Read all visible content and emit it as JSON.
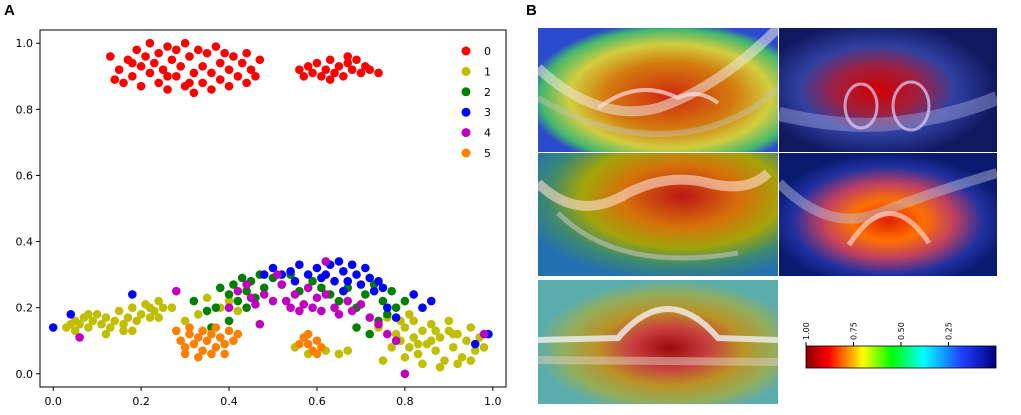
{
  "panels": {
    "a": "A",
    "b": "B"
  },
  "chart_data": {
    "type": "scatter",
    "title": "",
    "xlabel": "",
    "ylabel": "",
    "xlim": [
      -0.03,
      1.03
    ],
    "ylim": [
      -0.04,
      1.04
    ],
    "xticks": [
      "0.0",
      "0.2",
      "0.4",
      "0.6",
      "0.8",
      "1.0"
    ],
    "yticks": [
      "0.0",
      "0.2",
      "0.4",
      "0.6",
      "0.8",
      "1.0"
    ],
    "legend": "top-right",
    "series": [
      {
        "name": "0",
        "color": "#ff0000",
        "points": [
          [
            0.13,
            0.96
          ],
          [
            0.15,
            0.92
          ],
          [
            0.16,
            0.88
          ],
          [
            0.17,
            0.95
          ],
          [
            0.18,
            0.9
          ],
          [
            0.19,
            0.98
          ],
          [
            0.2,
            0.93
          ],
          [
            0.2,
            0.87
          ],
          [
            0.21,
            0.96
          ],
          [
            0.22,
            0.91
          ],
          [
            0.22,
            1.0
          ],
          [
            0.23,
            0.94
          ],
          [
            0.24,
            0.88
          ],
          [
            0.24,
            0.97
          ],
          [
            0.25,
            0.92
          ],
          [
            0.26,
            0.99
          ],
          [
            0.26,
            0.86
          ],
          [
            0.27,
            0.95
          ],
          [
            0.28,
            0.9
          ],
          [
            0.28,
            0.98
          ],
          [
            0.29,
            0.93
          ],
          [
            0.3,
            0.87
          ],
          [
            0.3,
            1.0
          ],
          [
            0.31,
            0.96
          ],
          [
            0.32,
            0.91
          ],
          [
            0.32,
            0.85
          ],
          [
            0.33,
            0.98
          ],
          [
            0.34,
            0.93
          ],
          [
            0.34,
            0.88
          ],
          [
            0.35,
            0.97
          ],
          [
            0.36,
            0.91
          ],
          [
            0.36,
            0.86
          ],
          [
            0.37,
            0.99
          ],
          [
            0.38,
            0.94
          ],
          [
            0.38,
            0.89
          ],
          [
            0.39,
            0.97
          ],
          [
            0.4,
            0.92
          ],
          [
            0.4,
            0.87
          ],
          [
            0.41,
            0.96
          ],
          [
            0.42,
            0.9
          ],
          [
            0.43,
            0.94
          ],
          [
            0.44,
            0.88
          ],
          [
            0.44,
            0.97
          ],
          [
            0.45,
            0.92
          ],
          [
            0.46,
            0.9
          ],
          [
            0.47,
            0.95
          ],
          [
            0.14,
            0.89
          ],
          [
            0.18,
            0.94
          ],
          [
            0.26,
            0.9
          ],
          [
            0.31,
            0.88
          ],
          [
            0.56,
            0.92
          ],
          [
            0.57,
            0.9
          ],
          [
            0.58,
            0.93
          ],
          [
            0.59,
            0.91
          ],
          [
            0.6,
            0.94
          ],
          [
            0.61,
            0.9
          ],
          [
            0.62,
            0.92
          ],
          [
            0.63,
            0.95
          ],
          [
            0.64,
            0.91
          ],
          [
            0.65,
            0.93
          ],
          [
            0.66,
            0.9
          ],
          [
            0.67,
            0.94
          ],
          [
            0.68,
            0.92
          ],
          [
            0.69,
            0.95
          ],
          [
            0.7,
            0.91
          ],
          [
            0.71,
            0.93
          ],
          [
            0.72,
            0.92
          ],
          [
            0.74,
            0.91
          ],
          [
            0.63,
            0.89
          ],
          [
            0.67,
            0.96
          ]
        ]
      },
      {
        "name": "1",
        "color": "#bfbf00",
        "points": [
          [
            0.03,
            0.14
          ],
          [
            0.04,
            0.15
          ],
          [
            0.05,
            0.16
          ],
          [
            0.06,
            0.15
          ],
          [
            0.07,
            0.17
          ],
          [
            0.08,
            0.14
          ],
          [
            0.09,
            0.16
          ],
          [
            0.1,
            0.18
          ],
          [
            0.11,
            0.15
          ],
          [
            0.12,
            0.17
          ],
          [
            0.13,
            0.14
          ],
          [
            0.14,
            0.16
          ],
          [
            0.15,
            0.19
          ],
          [
            0.16,
            0.15
          ],
          [
            0.17,
            0.17
          ],
          [
            0.18,
            0.2
          ],
          [
            0.19,
            0.16
          ],
          [
            0.2,
            0.18
          ],
          [
            0.21,
            0.21
          ],
          [
            0.22,
            0.17
          ],
          [
            0.23,
            0.19
          ],
          [
            0.24,
            0.22
          ],
          [
            0.25,
            0.2
          ],
          [
            0.16,
            0.13
          ],
          [
            0.12,
            0.12
          ],
          [
            0.08,
            0.18
          ],
          [
            0.05,
            0.13
          ],
          [
            0.22,
            0.2
          ],
          [
            0.18,
            0.13
          ],
          [
            0.24,
            0.17
          ],
          [
            0.27,
            0.2
          ],
          [
            0.3,
            0.16
          ],
          [
            0.33,
            0.18
          ],
          [
            0.35,
            0.23
          ],
          [
            0.38,
            0.2
          ],
          [
            0.4,
            0.22
          ],
          [
            0.42,
            0.19
          ],
          [
            0.55,
            0.08
          ],
          [
            0.58,
            0.06
          ],
          [
            0.62,
            0.07
          ],
          [
            0.65,
            0.06
          ],
          [
            0.67,
            0.07
          ],
          [
            0.74,
            0.14
          ],
          [
            0.76,
            0.17
          ],
          [
            0.78,
            0.12
          ],
          [
            0.79,
            0.1
          ],
          [
            0.8,
            0.14
          ],
          [
            0.81,
            0.08
          ],
          [
            0.82,
            0.11
          ],
          [
            0.83,
            0.06
          ],
          [
            0.84,
            0.13
          ],
          [
            0.85,
            0.09
          ],
          [
            0.86,
            0.15
          ],
          [
            0.87,
            0.07
          ],
          [
            0.88,
            0.11
          ],
          [
            0.89,
            0.04
          ],
          [
            0.9,
            0.13
          ],
          [
            0.91,
            0.08
          ],
          [
            0.92,
            0.12
          ],
          [
            0.93,
            0.05
          ],
          [
            0.94,
            0.1
          ],
          [
            0.95,
            0.14
          ],
          [
            0.96,
            0.07
          ],
          [
            0.97,
            0.11
          ],
          [
            0.98,
            0.08
          ],
          [
            0.8,
            0.05
          ],
          [
            0.84,
            0.03
          ],
          [
            0.86,
            0.1
          ],
          [
            0.9,
            0.16
          ],
          [
            0.82,
            0.16
          ],
          [
            0.77,
            0.08
          ],
          [
            0.75,
            0.04
          ],
          [
            0.88,
            0.02
          ],
          [
            0.92,
            0.03
          ],
          [
            0.95,
            0.04
          ],
          [
            0.87,
            0.13
          ],
          [
            0.91,
            0.12
          ],
          [
            0.83,
            0.09
          ],
          [
            0.79,
            0.16
          ],
          [
            0.81,
            0.18
          ]
        ]
      },
      {
        "name": "2",
        "color": "#008000",
        "points": [
          [
            0.32,
            0.22
          ],
          [
            0.35,
            0.19
          ],
          [
            0.37,
            0.2
          ],
          [
            0.38,
            0.26
          ],
          [
            0.4,
            0.24
          ],
          [
            0.41,
            0.27
          ],
          [
            0.42,
            0.22
          ],
          [
            0.43,
            0.29
          ],
          [
            0.44,
            0.25
          ],
          [
            0.45,
            0.28
          ],
          [
            0.46,
            0.23
          ],
          [
            0.47,
            0.3
          ],
          [
            0.48,
            0.26
          ],
          [
            0.5,
            0.29
          ],
          [
            0.52,
            0.27
          ],
          [
            0.54,
            0.3
          ],
          [
            0.56,
            0.25
          ],
          [
            0.59,
            0.28
          ],
          [
            0.61,
            0.26
          ],
          [
            0.63,
            0.24
          ],
          [
            0.65,
            0.22
          ],
          [
            0.67,
            0.26
          ],
          [
            0.69,
            0.2
          ],
          [
            0.71,
            0.24
          ],
          [
            0.73,
            0.27
          ],
          [
            0.75,
            0.22
          ],
          [
            0.76,
            0.18
          ],
          [
            0.77,
            0.25
          ],
          [
            0.78,
            0.2
          ],
          [
            0.8,
            0.22
          ],
          [
            0.69,
            0.14
          ],
          [
            0.72,
            0.12
          ],
          [
            0.36,
            0.14
          ],
          [
            0.4,
            0.16
          ],
          [
            0.44,
            0.2
          ],
          [
            0.74,
            0.16
          ]
        ]
      },
      {
        "name": "3",
        "color": "#0000ff",
        "points": [
          [
            0.0,
            0.14
          ],
          [
            0.04,
            0.18
          ],
          [
            0.18,
            0.24
          ],
          [
            0.48,
            0.3
          ],
          [
            0.5,
            0.32
          ],
          [
            0.52,
            0.3
          ],
          [
            0.54,
            0.31
          ],
          [
            0.56,
            0.33
          ],
          [
            0.58,
            0.3
          ],
          [
            0.6,
            0.32
          ],
          [
            0.61,
            0.29
          ],
          [
            0.62,
            0.3
          ],
          [
            0.63,
            0.33
          ],
          [
            0.64,
            0.28
          ],
          [
            0.65,
            0.34
          ],
          [
            0.66,
            0.31
          ],
          [
            0.67,
            0.28
          ],
          [
            0.68,
            0.33
          ],
          [
            0.69,
            0.3
          ],
          [
            0.7,
            0.27
          ],
          [
            0.71,
            0.32
          ],
          [
            0.72,
            0.29
          ],
          [
            0.73,
            0.25
          ],
          [
            0.74,
            0.28
          ],
          [
            0.75,
            0.26
          ],
          [
            0.76,
            0.2
          ],
          [
            0.78,
            0.17
          ],
          [
            0.82,
            0.24
          ],
          [
            0.84,
            0.2
          ],
          [
            0.86,
            0.22
          ],
          [
            0.99,
            0.12
          ],
          [
            0.96,
            0.09
          ],
          [
            0.55,
            0.28
          ],
          [
            0.66,
            0.25
          ]
        ]
      },
      {
        "name": "4",
        "color": "#bf00bf",
        "points": [
          [
            0.06,
            0.11
          ],
          [
            0.28,
            0.25
          ],
          [
            0.4,
            0.2
          ],
          [
            0.42,
            0.25
          ],
          [
            0.44,
            0.27
          ],
          [
            0.45,
            0.23
          ],
          [
            0.46,
            0.21
          ],
          [
            0.48,
            0.24
          ],
          [
            0.5,
            0.22
          ],
          [
            0.52,
            0.27
          ],
          [
            0.53,
            0.22
          ],
          [
            0.54,
            0.2
          ],
          [
            0.55,
            0.24
          ],
          [
            0.56,
            0.19
          ],
          [
            0.57,
            0.21
          ],
          [
            0.58,
            0.26
          ],
          [
            0.59,
            0.2
          ],
          [
            0.6,
            0.23
          ],
          [
            0.61,
            0.19
          ],
          [
            0.62,
            0.24
          ],
          [
            0.64,
            0.2
          ],
          [
            0.65,
            0.18
          ],
          [
            0.67,
            0.22
          ],
          [
            0.68,
            0.19
          ],
          [
            0.7,
            0.21
          ],
          [
            0.72,
            0.17
          ],
          [
            0.74,
            0.15
          ],
          [
            0.76,
            0.12
          ],
          [
            0.78,
            0.1
          ],
          [
            0.8,
            0.0
          ],
          [
            0.98,
            0.12
          ],
          [
            0.62,
            0.34
          ],
          [
            0.47,
            0.15
          ],
          [
            0.51,
            0.3
          ]
        ]
      },
      {
        "name": "5",
        "color": "#ff8000",
        "points": [
          [
            0.28,
            0.13
          ],
          [
            0.29,
            0.1
          ],
          [
            0.3,
            0.08
          ],
          [
            0.31,
            0.12
          ],
          [
            0.32,
            0.09
          ],
          [
            0.33,
            0.11
          ],
          [
            0.34,
            0.07
          ],
          [
            0.35,
            0.1
          ],
          [
            0.36,
            0.12
          ],
          [
            0.37,
            0.08
          ],
          [
            0.38,
            0.11
          ],
          [
            0.39,
            0.09
          ],
          [
            0.4,
            0.13
          ],
          [
            0.41,
            0.1
          ],
          [
            0.42,
            0.12
          ],
          [
            0.3,
            0.06
          ],
          [
            0.33,
            0.05
          ],
          [
            0.36,
            0.06
          ],
          [
            0.39,
            0.06
          ],
          [
            0.31,
            0.14
          ],
          [
            0.34,
            0.13
          ],
          [
            0.37,
            0.14
          ],
          [
            0.57,
            0.11
          ],
          [
            0.58,
            0.09
          ],
          [
            0.59,
            0.07
          ],
          [
            0.6,
            0.1
          ],
          [
            0.61,
            0.08
          ],
          [
            0.58,
            0.12
          ],
          [
            0.6,
            0.06
          ],
          [
            0.56,
            0.09
          ]
        ]
      }
    ]
  },
  "colorbar": {
    "ticks": [
      "1.00",
      "0.75",
      "0.50",
      "0.25"
    ],
    "tick_values": [
      1.0,
      0.75,
      0.5,
      0.25
    ],
    "stops": [
      "#8b0000",
      "#ff0000",
      "#ffff00",
      "#00ff00",
      "#00ffff",
      "#2040ff",
      "#000080"
    ]
  },
  "heatmaps": [
    {
      "name": "oct-top-left",
      "hot": "#ff2a00",
      "cold": "#1a3cff"
    },
    {
      "name": "oct-top-right",
      "hot": "#c00000",
      "cold": "#101060"
    },
    {
      "name": "oct-middle-left",
      "hot": "#d01010",
      "cold": "#20a0ff"
    },
    {
      "name": "oct-middle-right",
      "hot": "#e02000",
      "cold": "#0a1a80"
    },
    {
      "name": "oct-bottom",
      "hot": "#c00000",
      "cold": "#40c0ff"
    }
  ]
}
